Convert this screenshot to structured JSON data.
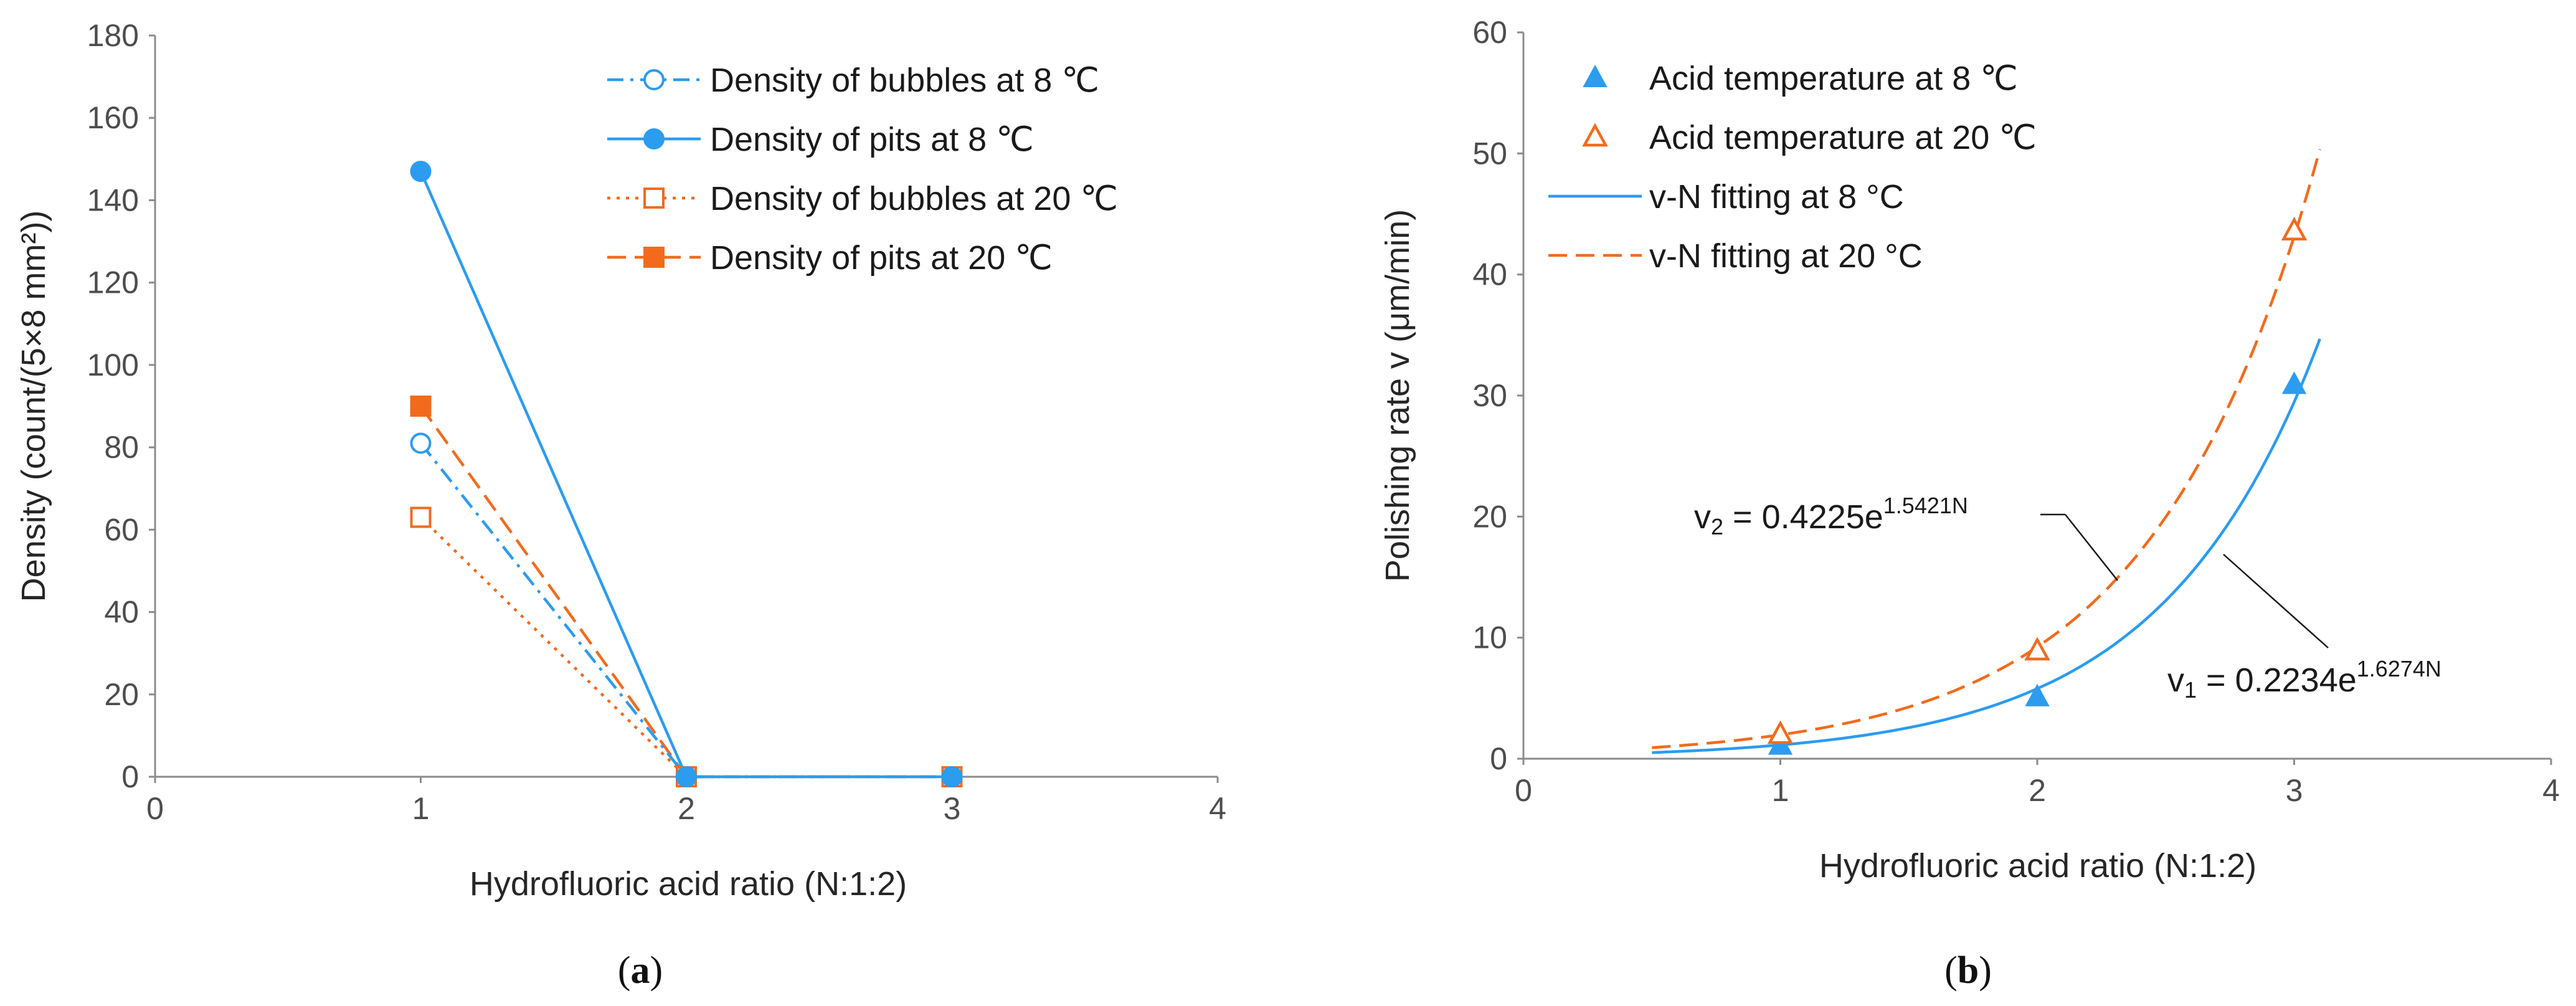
{
  "chart_data": [
    {
      "type": "line",
      "caption": "a",
      "xlabel": "Hydrofluoric acid ratio (N:1:2)",
      "ylabel": "Density (count/(5×8 mm²))",
      "xlim": [
        0,
        4
      ],
      "ylim": [
        0,
        180
      ],
      "xticks": [
        "0",
        "1",
        "2",
        "3",
        "4"
      ],
      "yticks": [
        "0",
        "20",
        "40",
        "60",
        "80",
        "100",
        "120",
        "140",
        "160",
        "180"
      ],
      "legend_position": "top-right",
      "series": [
        {
          "name": "Density of bubbles at 8 ℃",
          "x": [
            1,
            2,
            3
          ],
          "values": [
            81,
            0,
            0
          ],
          "color": "#2b9cf0",
          "line": "dash-dot",
          "marker": "circle-open"
        },
        {
          "name": "Density of pits at 8 ℃",
          "x": [
            1,
            2,
            3
          ],
          "values": [
            147,
            0,
            0
          ],
          "color": "#2b9cf0",
          "line": "solid",
          "marker": "circle-filled"
        },
        {
          "name": "Density of bubbles at 20 ℃",
          "x": [
            1,
            2,
            3
          ],
          "values": [
            63,
            0,
            0
          ],
          "color": "#f26b1d",
          "line": "dotted",
          "marker": "square-open"
        },
        {
          "name": "Density of pits at 20 ℃",
          "x": [
            1,
            2,
            3
          ],
          "values": [
            90,
            0,
            0
          ],
          "color": "#f26b1d",
          "line": "dashed",
          "marker": "square-filled"
        }
      ]
    },
    {
      "type": "scatter",
      "caption": "b",
      "xlabel": "Hydrofluoric acid ratio (N:1:2)",
      "ylabel": "Polishing rate v (μm/min)",
      "xlim": [
        0,
        4
      ],
      "ylim": [
        0,
        60
      ],
      "xticks": [
        "0",
        "1",
        "2",
        "3",
        "4"
      ],
      "yticks": [
        "0",
        "10",
        "20",
        "30",
        "40",
        "50",
        "60"
      ],
      "legend_position": "top-left",
      "series": [
        {
          "name": "Acid temperature at 8 ℃",
          "x": [
            1,
            2,
            3
          ],
          "values": [
            1.1,
            5.1,
            30.9
          ],
          "color": "#2b9cf0",
          "marker": "triangle-filled"
        },
        {
          "name": "Acid temperature at 20 ℃",
          "x": [
            1,
            2,
            3
          ],
          "values": [
            2.0,
            8.9,
            43.6
          ],
          "color": "#f26b1d",
          "marker": "triangle-open"
        }
      ],
      "fits": [
        {
          "name": "v-N fitting at 8 °C",
          "a": 0.2234,
          "b": 1.6274,
          "x_range": [
            0.5,
            3.1
          ],
          "color": "#2b9cf0",
          "line": "solid"
        },
        {
          "name": "v-N fitting at 20 °C",
          "a": 0.4225,
          "b": 1.5421,
          "x_range": [
            0.5,
            3.1
          ],
          "color": "#f26b1d",
          "line": "dashed"
        }
      ],
      "annotations": [
        {
          "var": "v",
          "sub": "2",
          "text": " = 0.4225e",
          "sup": "1.5421N"
        },
        {
          "var": "v",
          "sub": "1",
          "text": " = 0.2234e",
          "sup": "1.6274N"
        }
      ]
    }
  ]
}
